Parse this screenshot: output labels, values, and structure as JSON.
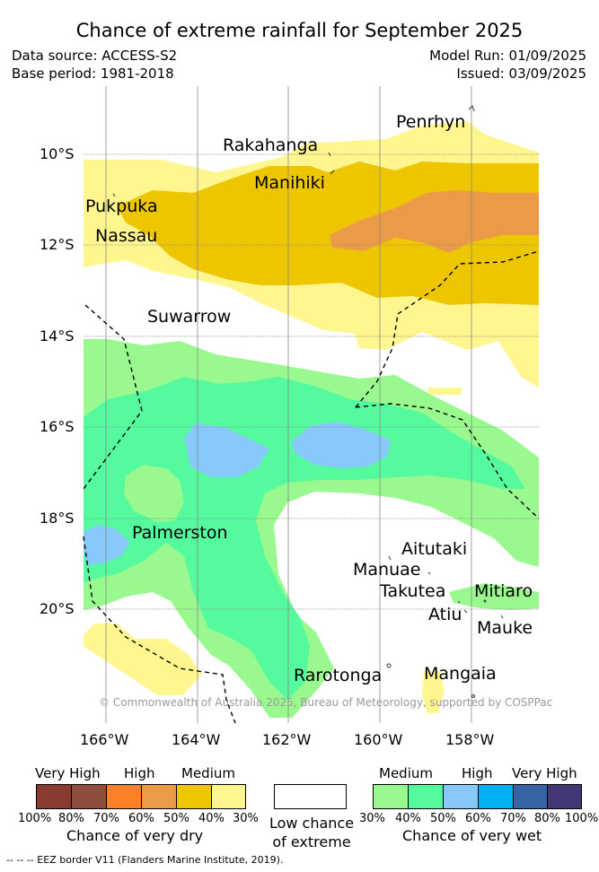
{
  "title": "Chance of extreme rainfall for September 2025",
  "meta": {
    "data_source": "Data source: ACCESS-S2",
    "base_period": "Base period: 1981-2018",
    "model_run": "Model Run: 01/09/2025",
    "issued": "Issued: 03/09/2025"
  },
  "map": {
    "lat_labels": [
      "10°S",
      "12°S",
      "14°S",
      "16°S",
      "18°S",
      "20°S"
    ],
    "lon_labels": [
      "166°W",
      "164°W",
      "162°W",
      "160°W",
      "158°W"
    ],
    "places": {
      "penrhyn": "Penrhyn",
      "rakahanga": "Rakahanga",
      "manihiki": "Manihiki",
      "pukpuka": "Pukpuka",
      "nassau": "Nassau",
      "suwarrow": "Suwarrow",
      "palmerston": "Palmerston",
      "aitutaki": "Aitutaki",
      "manuae": "Manuae",
      "takutea": "Takutea",
      "mitiaro": "Mitiaro",
      "atiu": "Atiu",
      "mauke": "Mauke",
      "rarotonga": "Rarotonga",
      "mangaia": "Mangaia"
    },
    "credit": "© Commonwealth of Australia 2025, Bureau of Meteorology, supported by COSPPac"
  },
  "legend": {
    "dry": {
      "headers": [
        "Very High",
        "High",
        "Medium"
      ],
      "ticks": [
        "100%",
        "80%",
        "70%",
        "60%",
        "50%",
        "40%",
        "30%"
      ],
      "caption": "Chance of very dry",
      "colors": [
        "#8b3a32",
        "#8e4e3c",
        "#ff7f27",
        "#eb9a48",
        "#eec600",
        "#fff68f"
      ]
    },
    "low": {
      "caption_line1": "Low chance",
      "caption_line2": "of extreme"
    },
    "wet": {
      "headers": [
        "Medium",
        "High",
        "Very High"
      ],
      "ticks": [
        "30%",
        "40%",
        "50%",
        "60%",
        "70%",
        "80%",
        "100%"
      ],
      "caption": "Chance of very wet",
      "colors": [
        "#99f98f",
        "#55fa9e",
        "#87c9fb",
        "#00b0f0",
        "#3864a7",
        "#433777"
      ]
    }
  },
  "footer": "--  --  -- EEZ border V11 (Flanders Marine Institute, 2019)."
}
